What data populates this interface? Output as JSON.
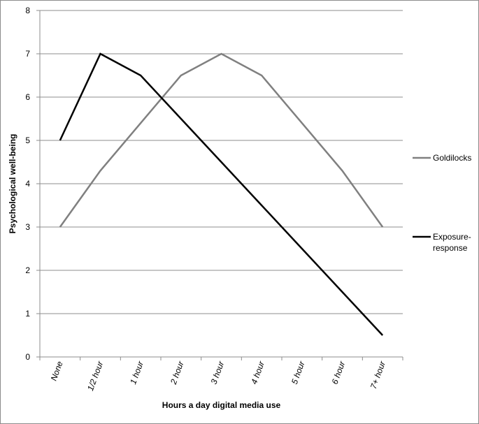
{
  "chart_data": {
    "type": "line",
    "categories": [
      "None",
      "1/2 hour",
      "1 hour",
      "2 hour",
      "3 hour",
      "4 hour",
      "5 hour",
      "6 hour",
      "7+ hour"
    ],
    "series": [
      {
        "name": "Goldilocks",
        "values": [
          3,
          4.3,
          5.4,
          6.5,
          7,
          6.5,
          5.4,
          4.3,
          3
        ],
        "color": "#808080"
      },
      {
        "name": "Exposure-response",
        "values": [
          5,
          7,
          6.5,
          5.5,
          4.5,
          3.5,
          2.5,
          1.5,
          0.5
        ],
        "color": "#000000"
      }
    ],
    "legend_labels": [
      [
        "Goldilocks"
      ],
      [
        "Exposure-",
        "response"
      ]
    ],
    "xlabel": "Hours a day digital media use",
    "ylabel": "Psychological well-being",
    "ylim": [
      0,
      8
    ],
    "yticks": [
      0,
      1,
      2,
      3,
      4,
      5,
      6,
      7,
      8
    ],
    "grid": "horizontal",
    "legend_position": "right"
  }
}
